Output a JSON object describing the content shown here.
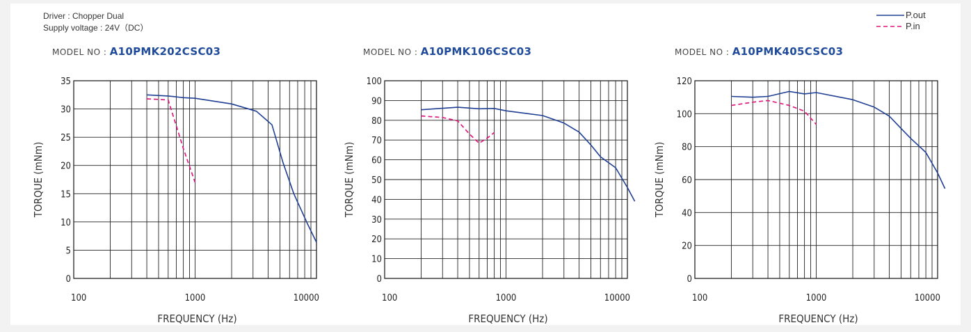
{
  "info": {
    "driver": "Driver : Chopper Dual",
    "supply": "Supply voltage : 24V（DC）"
  },
  "legend": [
    {
      "label": "P.out",
      "color": "#1f3f94",
      "style": "solid"
    },
    {
      "label": "P.in",
      "color": "#e0197d",
      "style": "dashed"
    }
  ],
  "model_prefix": "MODEL NO : ",
  "chart_data": [
    {
      "type": "line",
      "model": "A10PMK202CSC03",
      "xlabel": "FREQUENCY (Hz)",
      "ylabel": "TORQUE (mNm)",
      "xscale": "log",
      "xlim": [
        100,
        10000
      ],
      "xticks": [
        100,
        1000,
        10000
      ],
      "ylim": [
        0,
        35
      ],
      "yticks": [
        0,
        5,
        10,
        15,
        20,
        25,
        30,
        35
      ],
      "grid": true,
      "series": [
        {
          "name": "P.out",
          "color": "#1f3f94",
          "dashed": false,
          "x": [
            400,
            600,
            800,
            1000,
            2000,
            3200,
            4300,
            5300,
            6500,
            8500,
            10000
          ],
          "y": [
            32.5,
            32.3,
            32.0,
            31.9,
            30.9,
            29.6,
            27.2,
            20.5,
            15.0,
            9.5,
            6.4
          ]
        },
        {
          "name": "P.in",
          "color": "#e0197d",
          "dashed": true,
          "x": [
            400,
            600,
            700,
            800,
            1000
          ],
          "y": [
            31.8,
            31.6,
            27.0,
            23.0,
            17.0
          ]
        }
      ]
    },
    {
      "type": "line",
      "model": "A10PMK106CSC03",
      "xlabel": "FREQUENCY (Hz)",
      "ylabel": "TORQUE (mNm)",
      "xscale": "log",
      "xlim": [
        100,
        10000
      ],
      "xticks": [
        100,
        1000,
        10000
      ],
      "ylim": [
        0,
        100
      ],
      "yticks": [
        0,
        10,
        20,
        30,
        40,
        50,
        60,
        70,
        80,
        90,
        100
      ],
      "grid": true,
      "series": [
        {
          "name": "P.out",
          "color": "#1f3f94",
          "dashed": false,
          "x": [
            200,
            400,
            600,
            800,
            1000,
            2000,
            3000,
            4000,
            5000,
            6000,
            8000,
            10000,
            11500
          ],
          "y": [
            85.3,
            86.6,
            85.8,
            86.0,
            84.8,
            82.4,
            78.6,
            74.0,
            67.5,
            61.5,
            56.0,
            46.0,
            39.0
          ]
        },
        {
          "name": "P.in",
          "color": "#e0197d",
          "dashed": true,
          "x": [
            200,
            300,
            400,
            500,
            600,
            700,
            800
          ],
          "y": [
            82.2,
            81.4,
            79.7,
            73.0,
            68.4,
            71.0,
            73.8
          ]
        }
      ]
    },
    {
      "type": "line",
      "model": "A10PMK405CSC03",
      "xlabel": "FREQUENCY (Hz)",
      "ylabel": "TORQUE (mNm)",
      "xscale": "log",
      "xlim": [
        100,
        10000
      ],
      "xticks": [
        100,
        1000,
        10000
      ],
      "ylim": [
        0,
        120
      ],
      "yticks": [
        0,
        20,
        40,
        60,
        80,
        100,
        120
      ],
      "grid": true,
      "series": [
        {
          "name": "P.out",
          "color": "#1f3f94",
          "dashed": false,
          "x": [
            200,
            300,
            400,
            600,
            800,
            1000,
            2000,
            3000,
            4000,
            5000,
            6000,
            8000,
            10000,
            11500
          ],
          "y": [
            110.5,
            110.0,
            110.5,
            113.5,
            112.0,
            112.8,
            108.5,
            104.0,
            98.5,
            91.0,
            85.0,
            76.5,
            64.0,
            54.5
          ]
        },
        {
          "name": "P.in",
          "color": "#e0197d",
          "dashed": true,
          "x": [
            200,
            300,
            400,
            600,
            800,
            1000
          ],
          "y": [
            105.0,
            107.0,
            108.0,
            105.0,
            101.5,
            93.5
          ]
        }
      ]
    }
  ]
}
